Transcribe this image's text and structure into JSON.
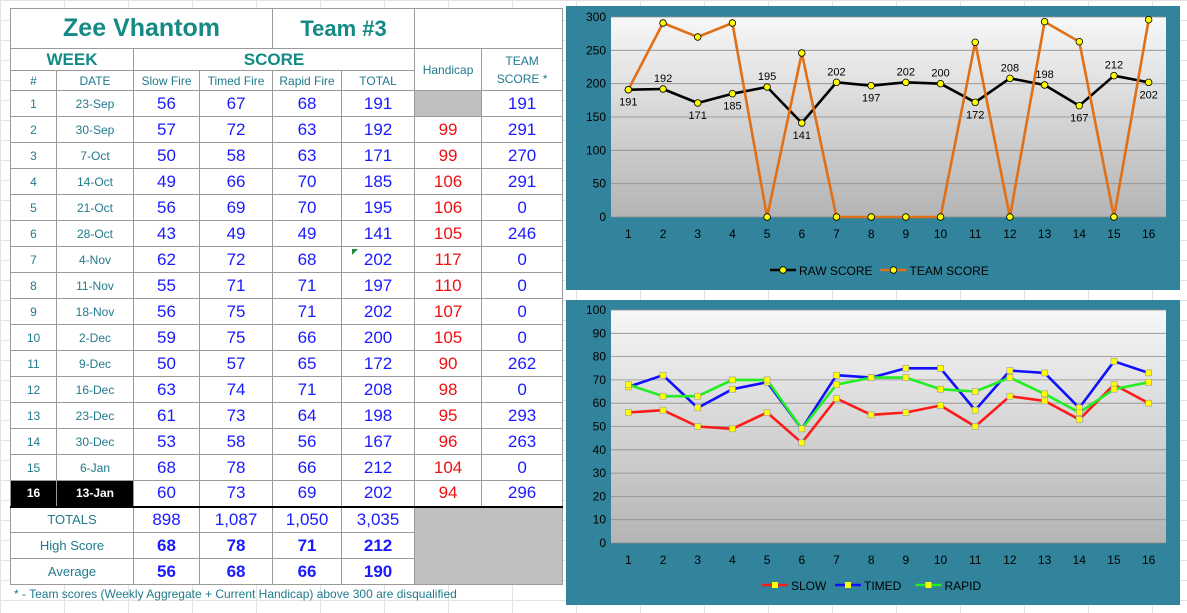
{
  "sheet": {
    "shooter_name": "Zee Vhantom",
    "team": "Team #3",
    "week_header": "WEEK",
    "score_header": "SCORE",
    "col_headers": {
      "num": "#",
      "date": "DATE",
      "slow": "Slow Fire",
      "timed": "Timed Fire",
      "rapid": "Rapid Fire",
      "total": "TOTAL",
      "handicap": "Handicap",
      "team_score_1": "TEAM",
      "team_score_2": "SCORE *"
    },
    "rows": [
      {
        "num": "1",
        "date": "23-Sep",
        "slow": "56",
        "timed": "67",
        "rapid": "68",
        "total": "191",
        "handicap": "",
        "team": "191"
      },
      {
        "num": "2",
        "date": "30-Sep",
        "slow": "57",
        "timed": "72",
        "rapid": "63",
        "total": "192",
        "handicap": "99",
        "team": "291"
      },
      {
        "num": "3",
        "date": "7-Oct",
        "slow": "50",
        "timed": "58",
        "rapid": "63",
        "total": "171",
        "handicap": "99",
        "team": "270"
      },
      {
        "num": "4",
        "date": "14-Oct",
        "slow": "49",
        "timed": "66",
        "rapid": "70",
        "total": "185",
        "handicap": "106",
        "team": "291"
      },
      {
        "num": "5",
        "date": "21-Oct",
        "slow": "56",
        "timed": "69",
        "rapid": "70",
        "total": "195",
        "handicap": "106",
        "team": "0"
      },
      {
        "num": "6",
        "date": "28-Oct",
        "slow": "43",
        "timed": "49",
        "rapid": "49",
        "total": "141",
        "handicap": "105",
        "team": "246"
      },
      {
        "num": "7",
        "date": "4-Nov",
        "slow": "62",
        "timed": "72",
        "rapid": "68",
        "total": "202",
        "handicap": "117",
        "team": "0"
      },
      {
        "num": "8",
        "date": "11-Nov",
        "slow": "55",
        "timed": "71",
        "rapid": "71",
        "total": "197",
        "handicap": "110",
        "team": "0"
      },
      {
        "num": "9",
        "date": "18-Nov",
        "slow": "56",
        "timed": "75",
        "rapid": "71",
        "total": "202",
        "handicap": "107",
        "team": "0"
      },
      {
        "num": "10",
        "date": "2-Dec",
        "slow": "59",
        "timed": "75",
        "rapid": "66",
        "total": "200",
        "handicap": "105",
        "team": "0"
      },
      {
        "num": "11",
        "date": "9-Dec",
        "slow": "50",
        "timed": "57",
        "rapid": "65",
        "total": "172",
        "handicap": "90",
        "team": "262"
      },
      {
        "num": "12",
        "date": "16-Dec",
        "slow": "63",
        "timed": "74",
        "rapid": "71",
        "total": "208",
        "handicap": "98",
        "team": "0"
      },
      {
        "num": "13",
        "date": "23-Dec",
        "slow": "61",
        "timed": "73",
        "rapid": "64",
        "total": "198",
        "handicap": "95",
        "team": "293"
      },
      {
        "num": "14",
        "date": "30-Dec",
        "slow": "53",
        "timed": "58",
        "rapid": "56",
        "total": "167",
        "handicap": "96",
        "team": "263"
      },
      {
        "num": "15",
        "date": "6-Jan",
        "slow": "68",
        "timed": "78",
        "rapid": "66",
        "total": "212",
        "handicap": "104",
        "team": "0"
      },
      {
        "num": "16",
        "date": "13-Jan",
        "slow": "60",
        "timed": "73",
        "rapid": "69",
        "total": "202",
        "handicap": "94",
        "team": "296"
      }
    ],
    "totals": {
      "label": "TOTALS",
      "slow": "898",
      "timed": "1,087",
      "rapid": "1,050",
      "total": "3,035"
    },
    "high": {
      "label": "High Score",
      "slow": "68",
      "timed": "78",
      "rapid": "71",
      "total": "212"
    },
    "average": {
      "label": "Average",
      "slow": "56",
      "timed": "68",
      "rapid": "66",
      "total": "190"
    },
    "footnote": "* - Team scores (Weekly Aggregate + Current Handicap) above 300 are disqualified"
  },
  "chart_data": [
    {
      "type": "line",
      "x": [
        1,
        2,
        3,
        4,
        5,
        6,
        7,
        8,
        9,
        10,
        11,
        12,
        13,
        14,
        15,
        16
      ],
      "ylim": [
        0,
        300
      ],
      "yticks": [
        0,
        50,
        100,
        150,
        200,
        250,
        300
      ],
      "grid": true,
      "legend": "bottom",
      "data_labels_series": "RAW SCORE",
      "series": [
        {
          "name": "RAW SCORE",
          "color": "#000000",
          "marker_color": "#ffff00",
          "values": [
            191,
            192,
            171,
            185,
            195,
            141,
            202,
            197,
            202,
            200,
            172,
            208,
            198,
            167,
            212,
            202
          ]
        },
        {
          "name": "TEAM SCORE",
          "color": "#e07018",
          "marker_color": "#ffff00",
          "values": [
            191,
            291,
            270,
            291,
            0,
            246,
            0,
            0,
            0,
            0,
            262,
            0,
            293,
            263,
            0,
            296
          ]
        }
      ]
    },
    {
      "type": "line",
      "x": [
        1,
        2,
        3,
        4,
        5,
        6,
        7,
        8,
        9,
        10,
        11,
        12,
        13,
        14,
        15,
        16
      ],
      "ylim": [
        0,
        100
      ],
      "yticks": [
        0,
        10,
        20,
        30,
        40,
        50,
        60,
        70,
        80,
        90,
        100
      ],
      "grid": true,
      "legend": "bottom",
      "series": [
        {
          "name": "SLOW",
          "color": "#ff1a1a",
          "marker_color": "#ffff00",
          "values": [
            56,
            57,
            50,
            49,
            56,
            43,
            62,
            55,
            56,
            59,
            50,
            63,
            61,
            53,
            68,
            60
          ]
        },
        {
          "name": "TIMED",
          "color": "#1010ff",
          "marker_color": "#ffff00",
          "values": [
            67,
            72,
            58,
            66,
            69,
            49,
            72,
            71,
            75,
            75,
            57,
            74,
            73,
            58,
            78,
            73
          ]
        },
        {
          "name": "RAPID",
          "color": "#22ee22",
          "marker_color": "#ffff00",
          "values": [
            68,
            63,
            63,
            70,
            70,
            49,
            68,
            71,
            71,
            66,
            65,
            71,
            64,
            56,
            66,
            69
          ]
        }
      ]
    }
  ]
}
